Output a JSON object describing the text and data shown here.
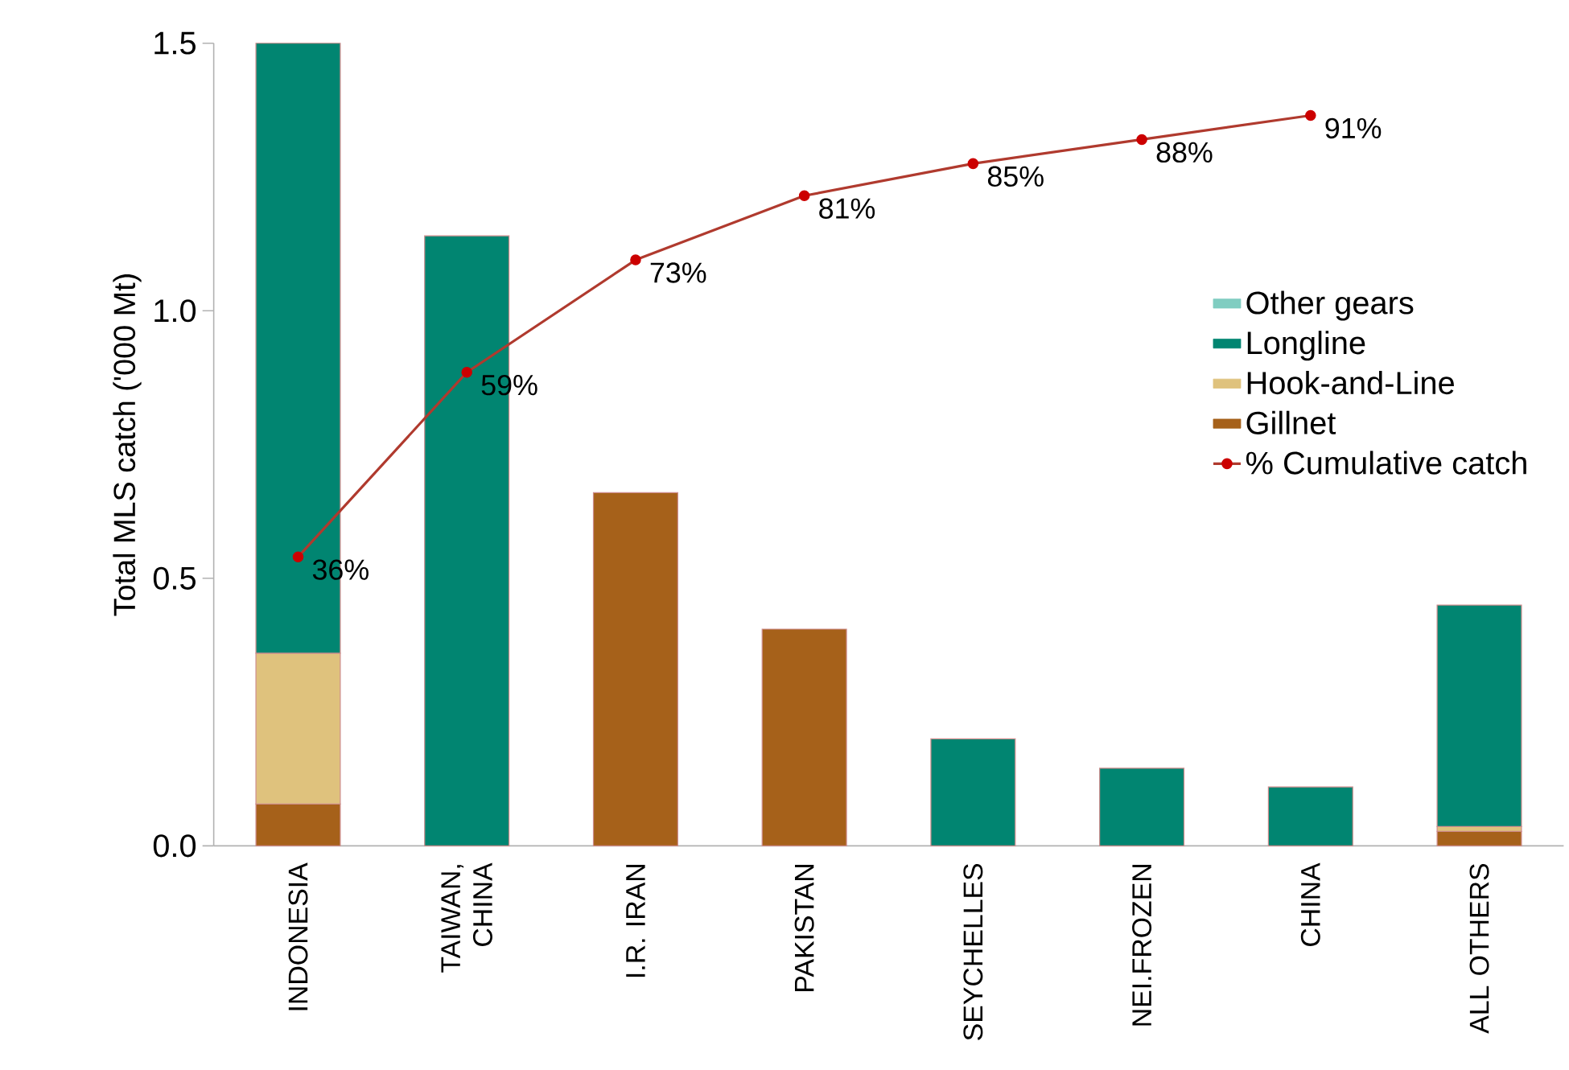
{
  "chart_data": {
    "type": "bar",
    "stacked": true,
    "ylabel": "Total MLS catch ('000 Mt)",
    "categories": [
      "INDONESIA",
      "TAIWAN, CHINA",
      "I.R. IRAN",
      "PAKISTAN",
      "SEYCHELLES",
      "NEI.FROZEN",
      "CHINA",
      "ALL OTHERS"
    ],
    "ylim": [
      0,
      1.5
    ],
    "yticks": [
      {
        "value": 0,
        "label": "0.0"
      },
      0.5,
      {
        "value": 1,
        "label": "1.0"
      },
      1.5
    ],
    "y2lim": [
      0,
      100
    ],
    "legend": "right",
    "series": [
      {
        "name": "Gillnet",
        "color": "#a6611a",
        "values": [
          0.078,
          null,
          0.66,
          0.405,
          null,
          null,
          null,
          0.027
        ]
      },
      {
        "name": "Hook-and-Line",
        "color": "#dfc27d",
        "values": [
          0.282,
          null,
          null,
          null,
          null,
          null,
          null,
          0.009
        ]
      },
      {
        "name": "Longline",
        "color": "#018571",
        "values": [
          1.14,
          1.14,
          null,
          null,
          0.2,
          0.145,
          0.11,
          0.414
        ]
      },
      {
        "name": "Other gears",
        "color": "#80cdc1",
        "values": [
          null,
          null,
          null,
          null,
          null,
          null,
          null,
          null
        ]
      },
      {
        "name": "% Cumulative catch",
        "type": "line",
        "axis": "y2",
        "color": "#b03a2e",
        "marker": "circle",
        "values": [
          36,
          59,
          73,
          81,
          85,
          88,
          91,
          null
        ],
        "value_labels": [
          "36%",
          "59%",
          "73%",
          "81%",
          "85%",
          "88%",
          "91%",
          null
        ]
      }
    ]
  }
}
